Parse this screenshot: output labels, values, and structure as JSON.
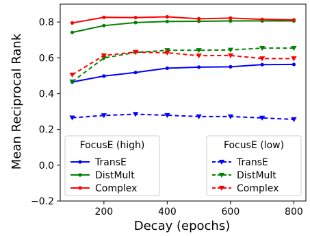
{
  "chart_data": {
    "type": "line",
    "xlabel": "Decay (epochs)",
    "ylabel": "Mean Reciprocal Rank",
    "xlim": [
      62,
      838
    ],
    "ylim": [
      -0.2,
      0.9
    ],
    "xticks": [
      200,
      400,
      600,
      800
    ],
    "yticks": [
      -0.2,
      0.0,
      0.2,
      0.4,
      0.6,
      0.8
    ],
    "xtick_labels": [
      "200",
      "400",
      "600",
      "800"
    ],
    "ytick_labels": [
      "−0.2",
      "0.0",
      "0.2",
      "0.4",
      "0.6",
      "0.8"
    ],
    "grid": false,
    "x": [
      100,
      200,
      300,
      400,
      500,
      600,
      700,
      800
    ],
    "series": [
      {
        "name": "TransE",
        "group": "high",
        "color": "#0000ff",
        "linestyle": "solid",
        "marker": "dot",
        "values": [
          0.465,
          0.498,
          0.518,
          0.542,
          0.548,
          0.55,
          0.562,
          0.563
        ]
      },
      {
        "name": "DistMult",
        "group": "high",
        "color": "#008000",
        "linestyle": "solid",
        "marker": "dot",
        "values": [
          0.742,
          0.78,
          0.797,
          0.803,
          0.804,
          0.806,
          0.806,
          0.806
        ]
      },
      {
        "name": "Complex",
        "group": "high",
        "color": "#ff0000",
        "linestyle": "solid",
        "marker": "dot",
        "values": [
          0.795,
          0.826,
          0.825,
          0.829,
          0.818,
          0.822,
          0.815,
          0.812
        ]
      },
      {
        "name": "TransE",
        "group": "low",
        "color": "#0000ff",
        "linestyle": "dashed",
        "marker": "triangle-down",
        "values": [
          0.265,
          0.278,
          0.285,
          0.279,
          0.272,
          0.272,
          0.264,
          0.256
        ]
      },
      {
        "name": "DistMult",
        "group": "low",
        "color": "#008000",
        "linestyle": "dashed",
        "marker": "triangle-down",
        "values": [
          0.467,
          0.599,
          0.63,
          0.642,
          0.642,
          0.644,
          0.654,
          0.654
        ]
      },
      {
        "name": "Complex",
        "group": "low",
        "color": "#ff0000",
        "linestyle": "dashed",
        "marker": "triangle-down",
        "values": [
          0.505,
          0.613,
          0.632,
          0.628,
          0.612,
          0.613,
          0.596,
          0.596
        ]
      }
    ],
    "legends": [
      {
        "title": "FocusE (high)",
        "placement": "lower-left",
        "entries": [
          "TransE",
          "DistMult",
          "Complex"
        ]
      },
      {
        "title": "FocusE (low)",
        "placement": "lower-right",
        "entries": [
          "TransE",
          "DistMult",
          "Complex"
        ]
      }
    ]
  }
}
